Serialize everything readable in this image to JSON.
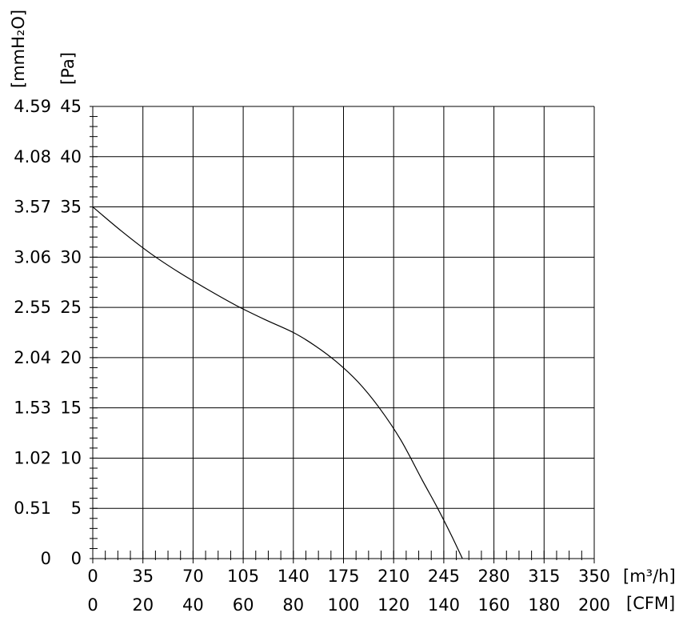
{
  "chart_data": {
    "type": "line",
    "title": "",
    "x_axes": [
      {
        "name": "airflow",
        "unit_label": "[m³/h]",
        "ticks": [
          "0",
          "35",
          "70",
          "105",
          "140",
          "175",
          "210",
          "245",
          "280",
          "315",
          "350"
        ],
        "range": [
          0,
          350
        ]
      },
      {
        "name": "airflow-cfm",
        "unit_label": "[CFM]",
        "ticks": [
          "0",
          "20",
          "40",
          "60",
          "80",
          "100",
          "120",
          "140",
          "160",
          "180",
          "200"
        ],
        "range": [
          0,
          200
        ]
      }
    ],
    "y_axes": [
      {
        "name": "pressure-pa",
        "unit_label": "[Pa]",
        "ticks": [
          "0",
          "5",
          "10",
          "15",
          "20",
          "25",
          "30",
          "35",
          "40",
          "45"
        ],
        "range": [
          0,
          45
        ]
      },
      {
        "name": "pressure-mmh2o",
        "unit_label": "[mmH₂O]",
        "ticks": [
          "0",
          "0.51",
          "1.02",
          "1.53",
          "2.04",
          "2.55",
          "3.06",
          "3.57",
          "4.08",
          "4.59"
        ],
        "range": [
          0,
          4.59
        ]
      }
    ],
    "grid": true,
    "series": [
      {
        "x": [
          0,
          20,
          40,
          60,
          80,
          100,
          120,
          140,
          155,
          170,
          185,
          200,
          215,
          230,
          240,
          250,
          258
        ],
        "y": [
          35,
          32.6,
          30.4,
          28.5,
          26.8,
          25.2,
          23.8,
          22.5,
          21.2,
          19.6,
          17.6,
          15.0,
          11.8,
          7.8,
          5.2,
          2.4,
          0
        ]
      }
    ]
  }
}
